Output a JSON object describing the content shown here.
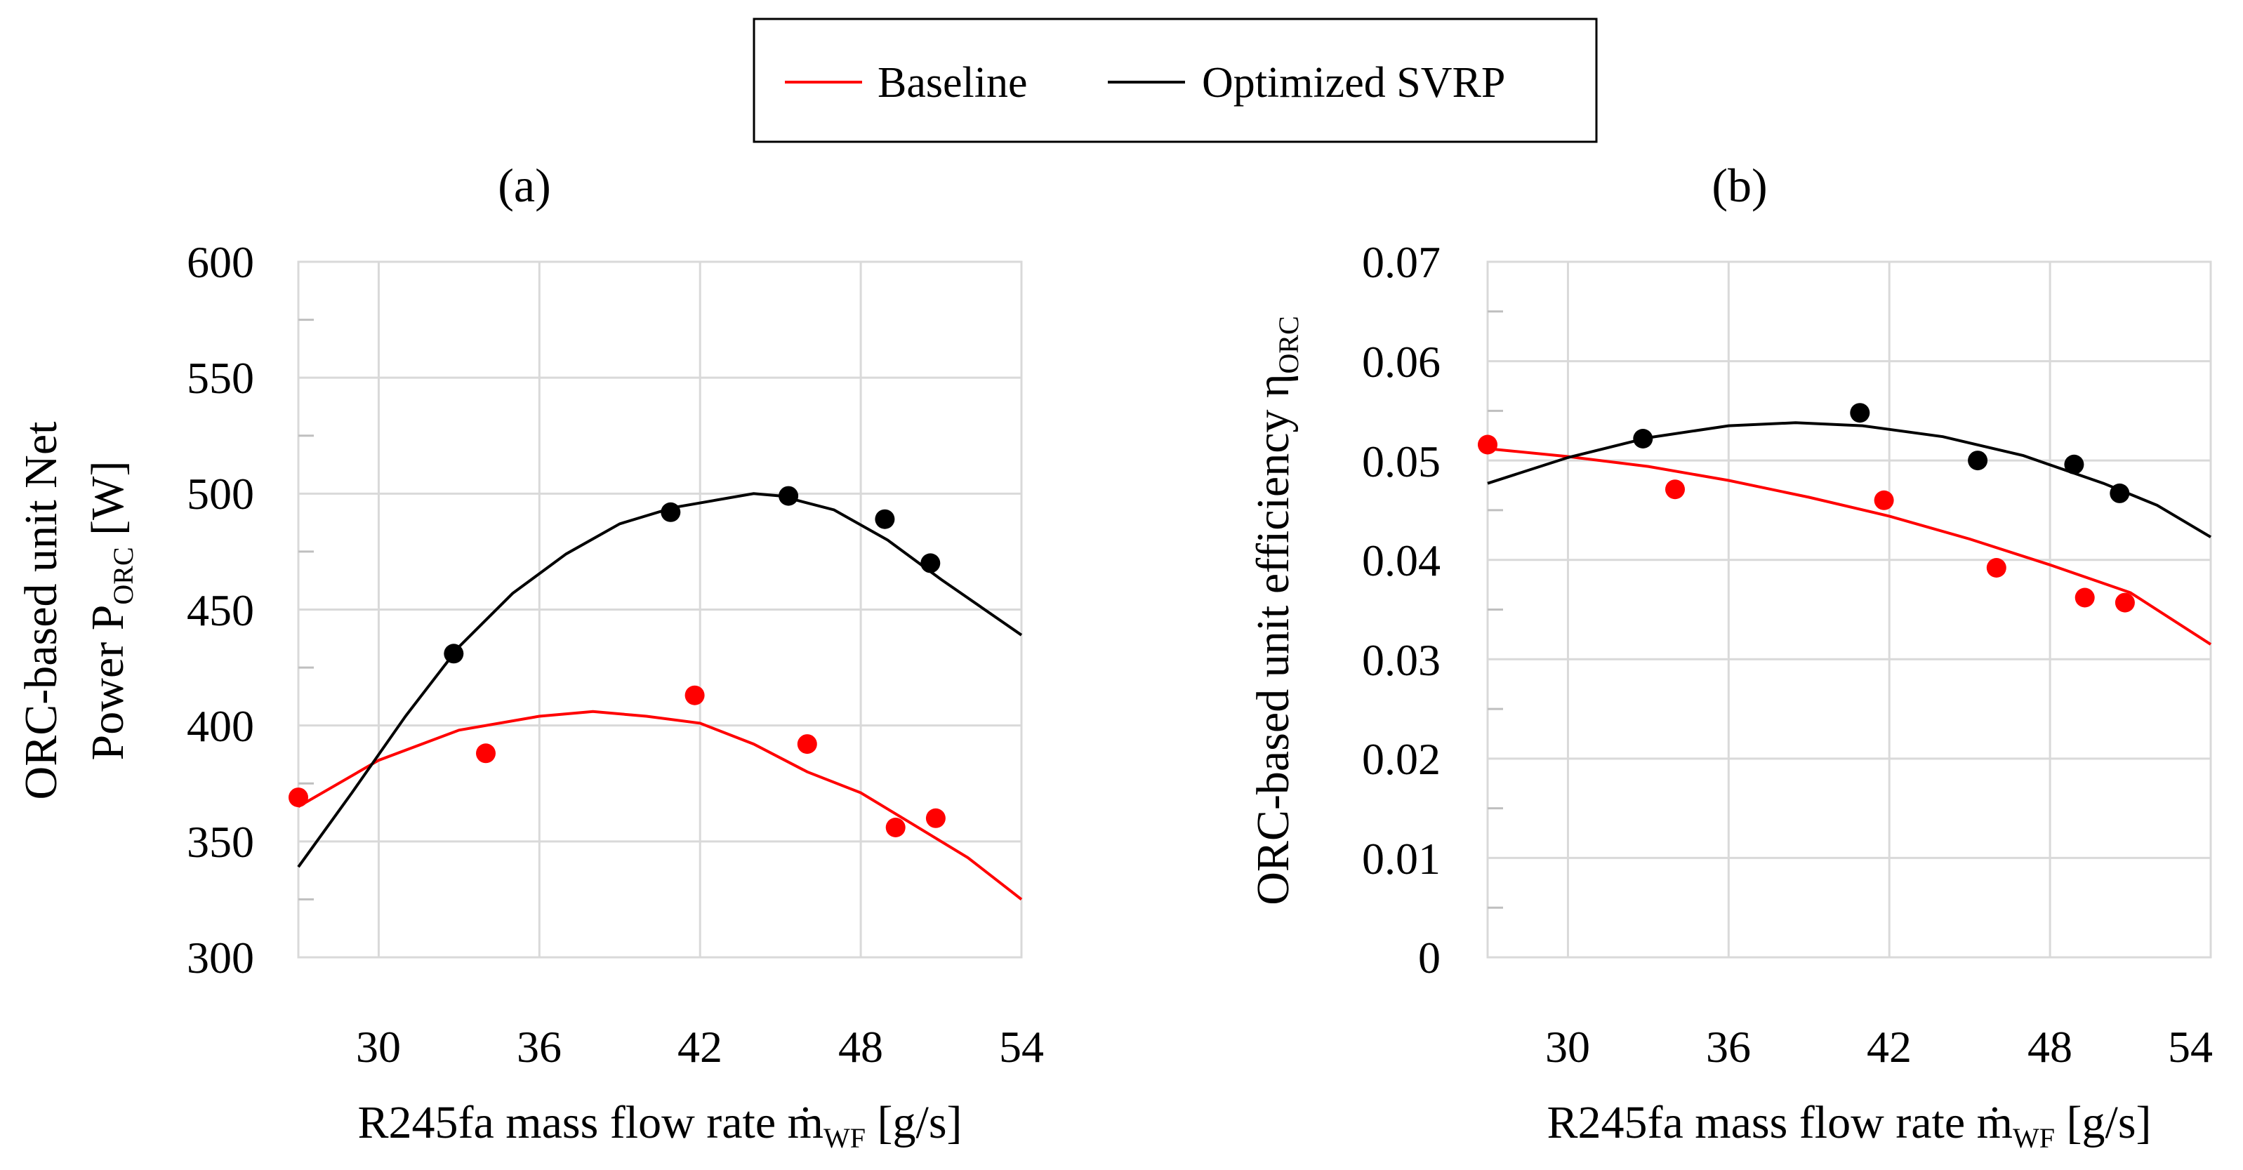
{
  "legend": {
    "items": [
      {
        "label": "Baseline",
        "color": "#ff0000"
      },
      {
        "label": "Optimized SVRP",
        "color": "#000000"
      }
    ]
  },
  "chart_data": [
    {
      "type": "scatter",
      "panel_label": "(a)",
      "xlabel": {
        "main": "R245fa mass flow rate ṁ",
        "sub": "WF",
        "unit": " [g/s]"
      },
      "ylabel": {
        "line1": "ORC-based unit Net",
        "line2_main": "Power P",
        "line2_sub": "ORC",
        "line2_unit": " [W]"
      },
      "xlim": [
        27,
        54
      ],
      "ylim": [
        300,
        600
      ],
      "x_ticks": [
        "30",
        "36",
        "42",
        "48",
        "54"
      ],
      "y_ticks": [
        "300",
        "350",
        "400",
        "450",
        "500",
        "550",
        "600"
      ],
      "grid": true,
      "series": [
        {
          "name": "Baseline",
          "color": "#ff0000",
          "points": [
            [
              27.0,
              369
            ],
            [
              34.0,
              388
            ],
            [
              41.8,
              413
            ],
            [
              46.0,
              392
            ],
            [
              49.3,
              356
            ],
            [
              50.8,
              360
            ]
          ],
          "fit": [
            [
              27.0,
              365
            ],
            [
              30.0,
              385
            ],
            [
              33.0,
              398
            ],
            [
              36.0,
              404
            ],
            [
              38.0,
              406
            ],
            [
              40.0,
              404
            ],
            [
              42.0,
              401
            ],
            [
              44.0,
              392
            ],
            [
              46.0,
              380
            ],
            [
              48.0,
              371
            ],
            [
              50.0,
              357
            ],
            [
              52.0,
              343
            ],
            [
              54.0,
              325
            ]
          ]
        },
        {
          "name": "Optimized SVRP",
          "color": "#000000",
          "points": [
            [
              32.8,
              431
            ],
            [
              40.9,
              492
            ],
            [
              45.3,
              499
            ],
            [
              48.9,
              489
            ],
            [
              50.6,
              470
            ]
          ],
          "fit": [
            [
              27.0,
              339
            ],
            [
              29.0,
              371
            ],
            [
              31.0,
              404
            ],
            [
              33.0,
              434
            ],
            [
              35.0,
              457
            ],
            [
              37.0,
              474
            ],
            [
              39.0,
              487
            ],
            [
              41.0,
              494
            ],
            [
              43.0,
              498
            ],
            [
              44.0,
              500
            ],
            [
              45.0,
              499
            ],
            [
              47.0,
              493
            ],
            [
              49.0,
              480
            ],
            [
              51.0,
              463
            ],
            [
              54.0,
              439
            ]
          ]
        }
      ]
    },
    {
      "type": "scatter",
      "panel_label": "(b)",
      "xlabel": {
        "main": "R245fa mass flow rate ṁ",
        "sub": "WF",
        "unit": " [g/s]"
      },
      "ylabel": {
        "main": "ORC-based unit efficiency η",
        "sub": "ORC"
      },
      "xlim": [
        27,
        54
      ],
      "ylim": [
        0,
        0.07
      ],
      "x_ticks": [
        "30",
        "36",
        "42",
        "48",
        "54"
      ],
      "y_ticks": [
        "0",
        "0.01",
        "0.02",
        "0.03",
        "0.04",
        "0.05",
        "0.06",
        "0.07"
      ],
      "grid": true,
      "series": [
        {
          "name": "Baseline",
          "color": "#ff0000",
          "points": [
            [
              27.0,
              0.0516
            ],
            [
              34.0,
              0.0471
            ],
            [
              41.8,
              0.046
            ],
            [
              46.0,
              0.0392
            ],
            [
              49.3,
              0.0362
            ],
            [
              50.8,
              0.0357
            ]
          ],
          "fit": [
            [
              27.0,
              0.0512
            ],
            [
              30.0,
              0.0504
            ],
            [
              33.0,
              0.0494
            ],
            [
              36.0,
              0.048
            ],
            [
              39.0,
              0.0463
            ],
            [
              42.0,
              0.0444
            ],
            [
              45.0,
              0.0421
            ],
            [
              48.0,
              0.0395
            ],
            [
              51.0,
              0.0367
            ],
            [
              54.0,
              0.0315
            ]
          ]
        },
        {
          "name": "Optimized SVRP",
          "color": "#000000",
          "points": [
            [
              32.8,
              0.0522
            ],
            [
              40.9,
              0.0548
            ],
            [
              45.3,
              0.05
            ],
            [
              48.9,
              0.0496
            ],
            [
              50.6,
              0.0467
            ]
          ],
          "fit": [
            [
              27.0,
              0.0477
            ],
            [
              30.0,
              0.0503
            ],
            [
              33.0,
              0.0523
            ],
            [
              36.0,
              0.0535
            ],
            [
              38.5,
              0.0538
            ],
            [
              41.0,
              0.0535
            ],
            [
              44.0,
              0.0524
            ],
            [
              47.0,
              0.0505
            ],
            [
              50.0,
              0.0477
            ],
            [
              52.0,
              0.0455
            ],
            [
              54.0,
              0.0423
            ]
          ]
        }
      ]
    }
  ]
}
